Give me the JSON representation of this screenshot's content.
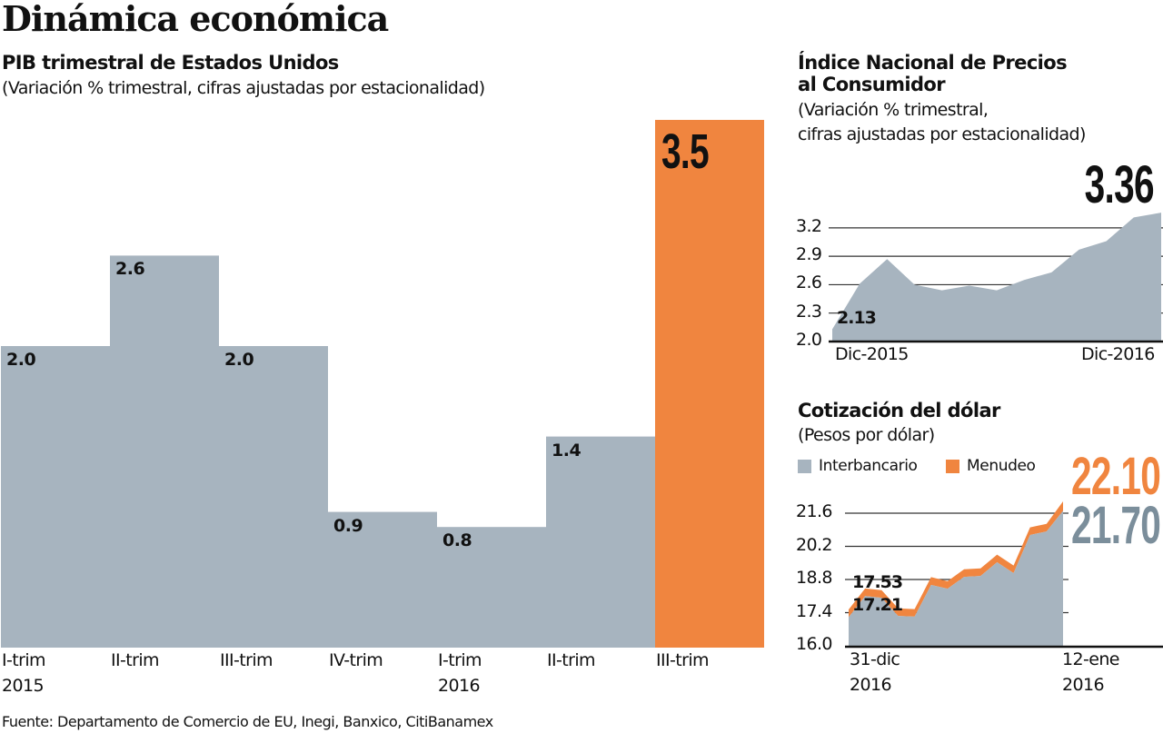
{
  "title": "Dinámica económica",
  "footer": "Fuente: Departamento de Comercio de EU, Inegi, Banxico, CitiBanamex",
  "colors": {
    "bar_gray": "#a7b4bf",
    "highlight_orange": "#f0853f",
    "dark_slate": "#7b8e9b",
    "text": "#111111",
    "gridline": "#333333"
  },
  "chart_data": [
    {
      "id": "pib",
      "type": "bar",
      "title": "PIB trimestral de Estados Unidos",
      "subtitle": "(Variación % trimestral, cifras ajustadas por estacionalidad)",
      "categories": [
        "I-trim\n2015",
        "II-trim",
        "III-trim",
        "IV-trim",
        "I-trim\n2016",
        "II-trim",
        "III-trim"
      ],
      "values": [
        2.0,
        2.6,
        2.0,
        0.9,
        0.8,
        1.4,
        3.5
      ],
      "value_labels": [
        "2.0",
        "2.6",
        "2.0",
        "0.9",
        "0.8",
        "1.4",
        "3.5"
      ],
      "highlight_index": 6,
      "xlabel": "",
      "ylabel": "",
      "ylim": [
        0,
        4.3
      ],
      "grid": false
    },
    {
      "id": "inpc",
      "type": "area",
      "title": "Índice Nacional de Precios\nal Consumidor",
      "subtitle": "(Variación % trimestral,\ncifras ajustadas por estacionalidad)",
      "x_tick_labels": [
        "Dic-2015",
        "Dic-2016"
      ],
      "y_ticks": [
        2.0,
        2.3,
        2.6,
        2.9,
        3.2
      ],
      "y_tick_labels": [
        "2.0",
        "2.3",
        "2.6",
        "2.9",
        "3.2"
      ],
      "ylim": [
        2.0,
        3.4
      ],
      "grid": true,
      "values": [
        2.13,
        2.61,
        2.87,
        2.6,
        2.54,
        2.59,
        2.54,
        2.65,
        2.73,
        2.97,
        3.06,
        3.31,
        3.36
      ],
      "start_label": "2.13",
      "end_label": "3.36"
    },
    {
      "id": "dolar",
      "type": "area",
      "title": "Cotización del dólar",
      "subtitle": "(Pesos por dólar)",
      "legend": [
        {
          "name": "Interbancario",
          "color": "#a7b4bf"
        },
        {
          "name": "Menudeo",
          "color": "#f0853f"
        }
      ],
      "legend_position": "top",
      "x_tick_labels": [
        "31-dic\n2016",
        "12-ene\n2016"
      ],
      "y_ticks": [
        16.0,
        17.4,
        18.8,
        20.2,
        21.6
      ],
      "y_tick_labels": [
        "16.0",
        "17.4",
        "18.8",
        "20.2",
        "21.6"
      ],
      "ylim": [
        16.0,
        22.3
      ],
      "grid": true,
      "series": [
        {
          "name": "Interbancario",
          "values": [
            17.21,
            18.1,
            18.03,
            17.26,
            17.23,
            18.57,
            18.41,
            18.91,
            18.95,
            19.53,
            19.07,
            20.68,
            20.83,
            21.7
          ]
        },
        {
          "name": "Menudeo",
          "values": [
            17.53,
            18.42,
            18.35,
            17.58,
            17.55,
            18.9,
            18.73,
            19.23,
            19.27,
            19.85,
            19.39,
            21.0,
            21.15,
            22.1
          ]
        }
      ],
      "start_labels": {
        "Menudeo": "17.53",
        "Interbancario": "17.21"
      },
      "end_labels": {
        "Menudeo": "22.10",
        "Interbancario": "21.70"
      }
    }
  ]
}
